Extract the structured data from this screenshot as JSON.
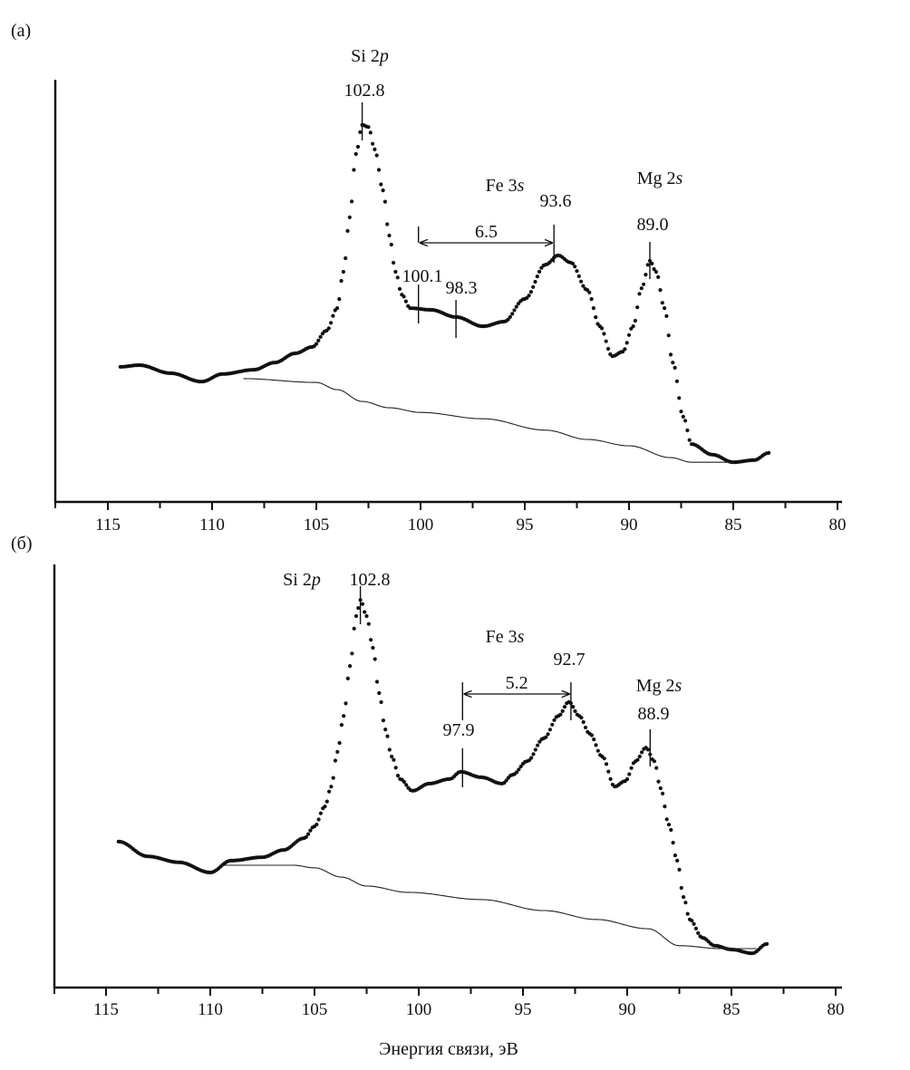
{
  "chart_data": {
    "type": "scatter",
    "xlabel": "Энергия связи, эВ",
    "xlim": [
      117.5,
      80
    ],
    "x_ticks": [
      115,
      110,
      105,
      100,
      95,
      90,
      85,
      80
    ],
    "x_tick_labels": [
      "115",
      "110",
      "105",
      "100",
      "95",
      "90",
      "85",
      "80"
    ],
    "minor_tick_step": 2.5,
    "grid": false,
    "y_ticks_shown": false,
    "ylim": [
      0,
      100
    ],
    "panels": [
      {
        "label": "(a)",
        "series": [
          {
            "name": "spectrum",
            "style": "dots",
            "x": [
              114.4,
              113.5,
              112,
              110.5,
              109.5,
              108,
              107,
              106,
              105.2,
              104.5,
              104,
              103.7,
              103.4,
              103.1,
              102.8,
              102.5,
              102.2,
              101.8,
              101.5,
              101.2,
              100.9,
              100.5,
              99.5,
              98.3,
              97,
              96,
              95,
              94,
              93.4,
              92.8,
              92,
              91.4,
              90.8,
              90.3,
              89.8,
              89.4,
              89.0,
              88.7,
              88.3,
              87.9,
              87.4,
              87.0,
              86,
              85,
              84,
              83.3
            ],
            "y": [
              32.0,
              32.4,
              30.5,
              28.5,
              30.3,
              31.3,
              33.0,
              35.2,
              36.7,
              40.6,
              45.9,
              54.5,
              67.4,
              82.4,
              89.3,
              88.8,
              83.5,
              73.8,
              63.1,
              54.5,
              49.1,
              45.9,
              45.5,
              43.8,
              41.6,
              42.7,
              48.1,
              56.2,
              58.4,
              56.7,
              50.2,
              41.6,
              34.5,
              35.6,
              41.6,
              50.6,
              57.1,
              54.5,
              45.9,
              33.0,
              20.2,
              13.7,
              11.2,
              9.4,
              9.9,
              11.6
            ]
          },
          {
            "name": "background",
            "style": "line",
            "x": [
              108.5,
              105,
              104,
              102.8,
              101.5,
              100,
              97,
              94,
              92,
              90,
              88,
              87,
              85
            ],
            "y": [
              29.2,
              28.3,
              26.6,
              23.8,
              22.3,
              21.2,
              19.7,
              17.0,
              14.8,
              13.3,
              10.5,
              9.4,
              9.4
            ]
          }
        ],
        "annotations": [
          {
            "type": "label",
            "text": "Si 2",
            "italic": "p"
          },
          {
            "type": "marker",
            "x": 102.8,
            "text": "102.8"
          },
          {
            "type": "label",
            "text": "Fe 3",
            "italic": "s"
          },
          {
            "type": "marker",
            "x": 93.6,
            "text": "93.6"
          },
          {
            "type": "label",
            "text": "Mg 2",
            "italic": "s"
          },
          {
            "type": "marker",
            "x": 89.0,
            "text": "89.0"
          },
          {
            "type": "marker",
            "x": 100.1,
            "text": "100.1"
          },
          {
            "type": "marker",
            "x": 98.3,
            "text": "98.3"
          },
          {
            "type": "arrow",
            "from": 100.1,
            "to": 93.6,
            "text": "6.5"
          }
        ]
      },
      {
        "label": "(б)",
        "series": [
          {
            "name": "spectrum",
            "style": "dots",
            "x": [
              114.4,
              113,
              111.5,
              110,
              109,
              107.5,
              106.5,
              105.5,
              105,
              104.5,
              104.2,
              103.9,
              103.6,
              103.3,
              103.0,
              102.8,
              102.5,
              102.2,
              101.9,
              101.6,
              101.3,
              100.9,
              100.3,
              99.5,
              98.5,
              98,
              97,
              96,
              95.5,
              94.8,
              94,
              93.3,
              92.8,
              92.3,
              91.8,
              91.2,
              90.6,
              90.1,
              89.6,
              89.1,
              88.7,
              88.4,
              88.0,
              87.6,
              87.3,
              87.0,
              86.4,
              85.8,
              85,
              84,
              83.3
            ],
            "y": [
              34.5,
              31.0,
              29.6,
              27.2,
              30.0,
              30.8,
              32.5,
              35.3,
              38.1,
              42.8,
              47.5,
              55.7,
              64.2,
              76.0,
              87.8,
              91.6,
              87.8,
              80.3,
              69.6,
              61.0,
              54.6,
              49.3,
              46.5,
              48.2,
              49.3,
              51.0,
              49.7,
              48.2,
              50.3,
              53.5,
              58.9,
              64.2,
              67.5,
              64.2,
              60.0,
              54.6,
              47.5,
              48.8,
              53.5,
              56.7,
              53.5,
              47.1,
              38.5,
              30.0,
              21.4,
              16.1,
              11.8,
              9.9,
              9.0,
              8.1,
              10.3
            ]
          },
          {
            "name": "background",
            "style": "line",
            "x": [
              109.5,
              106,
              105,
              103.7,
              102.5,
              100.5,
              97,
              94,
              91.5,
              89,
              87.5,
              85.5,
              83.8
            ],
            "y": [
              28.9,
              28.9,
              28.3,
              26.1,
              24.0,
              22.5,
              20.8,
              18.2,
              16.1,
              13.9,
              9.9,
              9.2,
              9.2
            ]
          }
        ],
        "annotations": [
          {
            "type": "label",
            "text": "Si 2",
            "italic": "p"
          },
          {
            "type": "marker",
            "x": 102.8,
            "text": "102.8"
          },
          {
            "type": "label",
            "text": "Fe 3",
            "italic": "s"
          },
          {
            "type": "marker",
            "x": 92.7,
            "text": "92.7"
          },
          {
            "type": "label",
            "text": "Mg 2",
            "italic": "s"
          },
          {
            "type": "marker",
            "x": 88.9,
            "text": "88.9"
          },
          {
            "type": "marker",
            "x": 97.9,
            "text": "97.9"
          },
          {
            "type": "arrow",
            "from": 97.9,
            "to": 92.7,
            "text": "5.2"
          }
        ]
      }
    ]
  }
}
